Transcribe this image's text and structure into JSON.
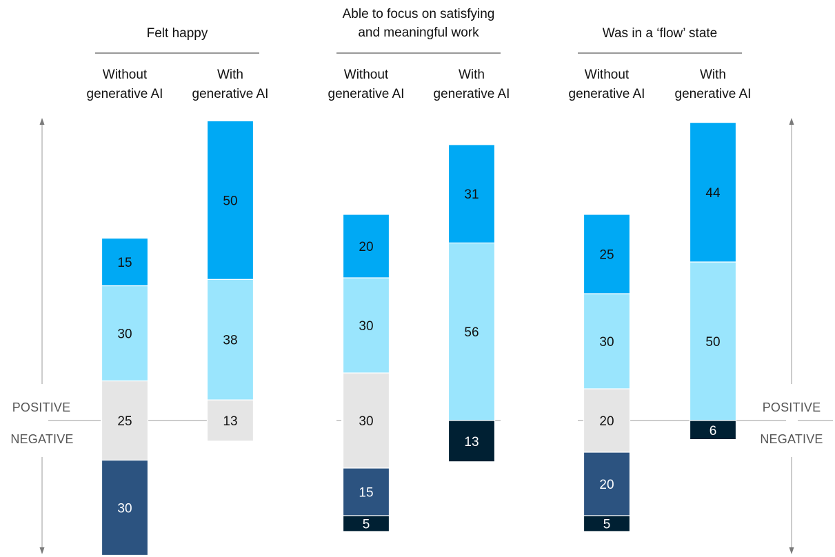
{
  "chart_data": {
    "type": "bar",
    "stacking": "diverging",
    "axis_labels": {
      "positive": "POSITIVE",
      "negative": "NEGATIVE"
    },
    "segment_colors": [
      "#002033",
      "#2c5380",
      "#e5e5e5",
      "#9ae5fd",
      "#00a9f4"
    ],
    "groups": [
      {
        "title": [
          "Felt happy"
        ],
        "columns": [
          {
            "label": [
              "Without",
              "generative AI"
            ],
            "negative": [
              {
                "value": 30,
                "color": "#2c5380"
              }
            ],
            "neutral": {
              "value": 25,
              "color": "#e5e5e5"
            },
            "positive": [
              {
                "value": 30,
                "color": "#9ae5fd"
              },
              {
                "value": 15,
                "color": "#00a9f4"
              }
            ]
          },
          {
            "label": [
              "With",
              "generative AI"
            ],
            "negative": [],
            "neutral": {
              "value": 13,
              "color": "#e5e5e5"
            },
            "positive": [
              {
                "value": 38,
                "color": "#9ae5fd"
              },
              {
                "value": 50,
                "color": "#00a9f4"
              }
            ]
          }
        ]
      },
      {
        "title": [
          "Able to focus on satisfying",
          "and meaningful work"
        ],
        "columns": [
          {
            "label": [
              "Without",
              "generative AI"
            ],
            "negative": [
              {
                "value": 15,
                "color": "#2c5380"
              },
              {
                "value": 5,
                "color": "#002033"
              }
            ],
            "neutral": {
              "value": 30,
              "color": "#e5e5e5"
            },
            "positive": [
              {
                "value": 30,
                "color": "#9ae5fd"
              },
              {
                "value": 20,
                "color": "#00a9f4"
              }
            ]
          },
          {
            "label": [
              "With",
              "generative AI"
            ],
            "negative": [
              {
                "value": 13,
                "color": "#002033"
              }
            ],
            "neutral": null,
            "positive": [
              {
                "value": 56,
                "color": "#9ae5fd"
              },
              {
                "value": 31,
                "color": "#00a9f4"
              }
            ]
          }
        ]
      },
      {
        "title": [
          "Was in a ‘flow’ state"
        ],
        "columns": [
          {
            "label": [
              "Without",
              "generative AI"
            ],
            "negative": [
              {
                "value": 20,
                "color": "#2c5380"
              },
              {
                "value": 5,
                "color": "#002033"
              }
            ],
            "neutral": {
              "value": 20,
              "color": "#e5e5e5"
            },
            "positive": [
              {
                "value": 30,
                "color": "#9ae5fd"
              },
              {
                "value": 25,
                "color": "#00a9f4"
              }
            ]
          },
          {
            "label": [
              "With",
              "generative AI"
            ],
            "negative": [
              {
                "value": 6,
                "color": "#002033"
              }
            ],
            "neutral": null,
            "positive": [
              {
                "value": 50,
                "color": "#9ae5fd"
              },
              {
                "value": 44,
                "color": "#00a9f4"
              }
            ]
          }
        ]
      }
    ]
  }
}
